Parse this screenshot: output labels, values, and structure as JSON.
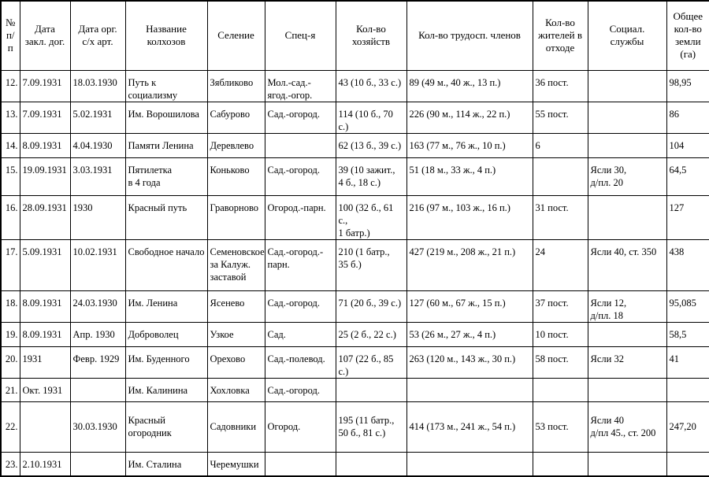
{
  "table": {
    "header": [
      "№\nп/п",
      "Дата\nзакл. дог.",
      "Дата орг.\nс/х арт.",
      "Название\nколхозов",
      "Селение",
      "Спец-я",
      "Кол-во\nхозяйств",
      "Кол-во трудосп. членов",
      "Кол-во\nжителей в\nотходе",
      "Социал.\nслужбы",
      "Общее\nкол-во\nземли\n(га)"
    ],
    "rows": [
      [
        "12.",
        "7.09.1931",
        "18.03.1930",
        "Путь к социализму",
        "Зябликово",
        "Мол.-сад.-\nягод.-огор.",
        "43 (10 б., 33 с.)",
        "89 (49 м., 40 ж., 13 п.)",
        "36 пост.",
        null,
        "98,95"
      ],
      [
        "13.",
        "7.09.1931",
        "5.02.1931",
        "Им. Ворошилова",
        "Сабурово",
        "Сад.-огород.",
        "114 (10 б., 70 с.)",
        "226 (90 м., 114 ж., 22 п.)",
        "55 пост.",
        null,
        "86"
      ],
      [
        "14.",
        "8.09.1931",
        "4.04.1930",
        "Памяти Ленина",
        "Деревлево",
        null,
        "62 (13 б., 39 с.)",
        "163 (77 м., 76 ж., 10 п.)",
        "6",
        null,
        "104"
      ],
      [
        "15.",
        "19.09.1931",
        "3.03.1931",
        "Пятилетка\nв 4 года",
        "Коньково",
        "Сад.-огород.",
        "39 (10 зажит.,\n4 б., 18 с.)",
        "51 (18 м., 33 ж., 4 п.)",
        null,
        "Ясли 30,\nд/пл. 20",
        "64,5"
      ],
      [
        "16.",
        "28.09.1931",
        "1930",
        "Красный путь",
        "Граворново",
        "Огород.-парн.",
        "100 (32 б., 61 с.,\n1 батр.)",
        "216 (97 м., 103 ж., 16 п.)",
        "31 пост.",
        null,
        "127"
      ],
      [
        "17.",
        "5.09.1931",
        "10.02.1931",
        "Свободное начало",
        "Семеновское\nза Калуж.\nзаставой",
        "Сад.-огород.-\nпарн.",
        "210 (1 батр.,\n35 б.)",
        "427 (219 м., 208 ж., 21 п.)",
        "24",
        "Ясли 40, ст. 350",
        "438"
      ],
      [
        "18.",
        "8.09.1931",
        "24.03.1930",
        "Им. Ленина",
        "Ясенево",
        "Сад.-огород.",
        "71 (20 б., 39 с.)",
        "127 (60 м., 67 ж., 15 п.)",
        "37 пост.",
        "Ясли 12,\nд/пл. 18",
        "95,085"
      ],
      [
        "19.",
        "8.09.1931",
        "Апр. 1930",
        "Доброволец",
        "Узкое",
        "Сад.",
        "25 (2 б., 22 с.)",
        "53 (26 м., 27 ж., 4 п.)",
        "10 пост.",
        null,
        "58,5"
      ],
      [
        "20.",
        "1931",
        "Февр. 1929",
        "Им. Буденного",
        "Орехово",
        "Сад.-полевод.",
        "107 (22 б., 85 с.)",
        "263 (120 м., 143 ж., 30 п.)",
        "58 пост.",
        "Ясли 32",
        "41"
      ],
      [
        "21.",
        "Окт. 1931",
        null,
        "Им. Калинина",
        "Хохловка",
        "Сад.-огород.",
        null,
        null,
        null,
        null,
        null
      ],
      [
        "22.",
        null,
        "30.03.1930",
        "Красный\nогородник",
        "Садовники",
        "Огород.",
        "195 (11 батр.,\n50 б., 81 с.)",
        "414 (173 м., 241 ж., 54 п.)",
        "53 пост.",
        "Ясли 40\nд/пл 45., ст. 200",
        "247,20"
      ],
      [
        "23.",
        "2.10.1931",
        null,
        "Им. Сталина",
        "Черемушки",
        null,
        null,
        null,
        null,
        null,
        null
      ]
    ]
  }
}
